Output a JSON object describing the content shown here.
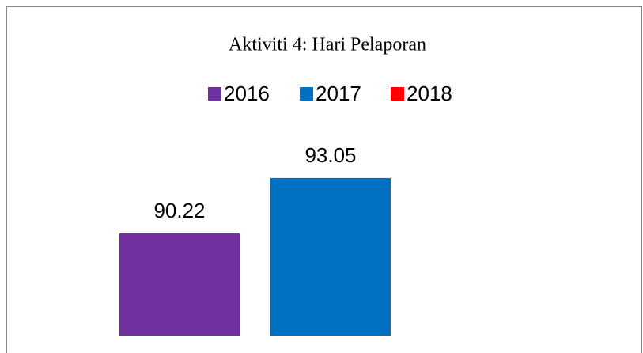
{
  "chart_data": {
    "type": "bar",
    "title": "Aktiviti 4: Hari Pelaporan",
    "categories": [
      null
    ],
    "series": [
      {
        "name": "2016",
        "color": "#7030a0",
        "values": [
          90.22
        ]
      },
      {
        "name": "2017",
        "color": "#0070c0",
        "values": [
          93.05
        ]
      },
      {
        "name": "2018",
        "color": "#ff0000",
        "values": [
          null
        ]
      }
    ],
    "ylim": [
      85,
      100
    ],
    "grid": false,
    "legend": "top"
  }
}
